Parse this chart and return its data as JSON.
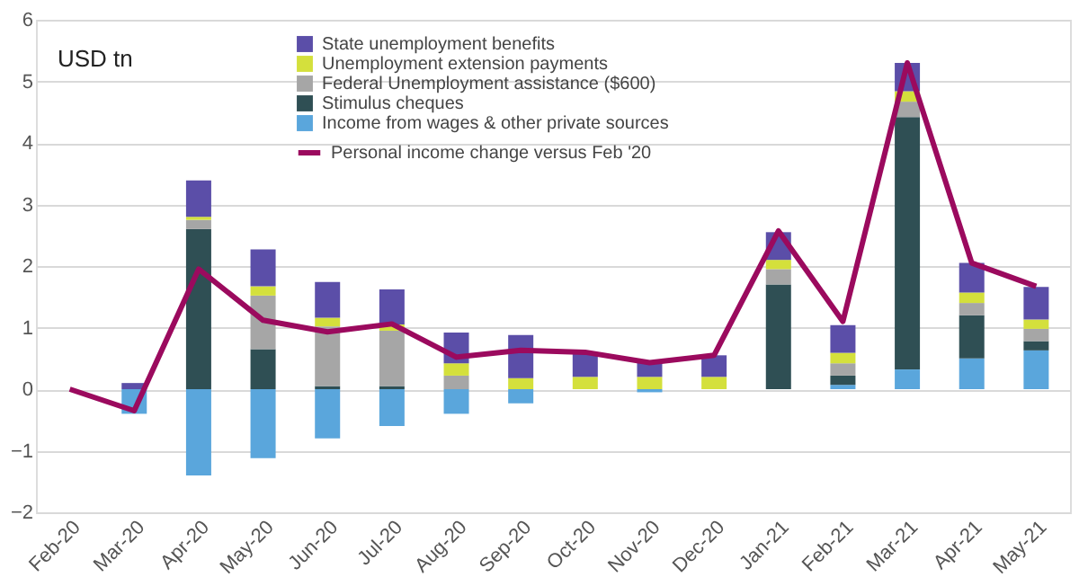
{
  "chart_data": {
    "type": "bar",
    "stacked": true,
    "categories": [
      "Feb-20",
      "Mar-20",
      "Apr-20",
      "May-20",
      "Jun-20",
      "Jul-20",
      "Aug-20",
      "Sep-20",
      "Oct-20",
      "Nov-20",
      "Dec-20",
      "Jan-21",
      "Feb-21",
      "Mar-21",
      "Apr-21",
      "May-21"
    ],
    "series": [
      {
        "name": "Income from wages & other private sources",
        "color": "#5aa6dc",
        "values": [
          0,
          -0.4,
          -1.4,
          -1.12,
          -0.8,
          -0.6,
          -0.4,
          -0.23,
          0,
          -0.05,
          0,
          0,
          0.07,
          0.32,
          0.5,
          0.63
        ]
      },
      {
        "name": "Stimulus cheques",
        "color": "#2f4f54",
        "values": [
          0,
          0,
          2.6,
          0.65,
          0.05,
          0.05,
          0,
          0,
          0,
          0,
          0,
          1.7,
          0.15,
          4.1,
          0.7,
          0.15
        ]
      },
      {
        "name": "Federal Unemployment assistance ($600)",
        "color": "#a6a6a6",
        "values": [
          0,
          0,
          0.15,
          0.87,
          0.97,
          0.9,
          0.22,
          0,
          0,
          0,
          0,
          0.25,
          0.2,
          0.25,
          0.2,
          0.2
        ]
      },
      {
        "name": "Unemployment extension payments",
        "color": "#d4e03c",
        "values": [
          0,
          0,
          0.05,
          0.15,
          0.14,
          0.1,
          0.2,
          0.18,
          0.2,
          0.2,
          0.2,
          0.15,
          0.17,
          0.17,
          0.17,
          0.15
        ]
      },
      {
        "name": "State unemployment benefits",
        "color": "#5b4ea8",
        "values": [
          0,
          0.1,
          0.59,
          0.6,
          0.58,
          0.57,
          0.5,
          0.7,
          0.4,
          0.25,
          0.35,
          0.45,
          0.45,
          0.46,
          0.48,
          0.53
        ]
      },
      {
        "name": "Personal income change versus Feb '20",
        "type": "line",
        "color": "#9b0a5e",
        "values": [
          0,
          -0.35,
          1.95,
          1.12,
          0.93,
          1.06,
          0.52,
          0.63,
          0.6,
          0.43,
          0.55,
          2.57,
          1.1,
          5.3,
          2.05,
          1.67
        ]
      }
    ],
    "ylim": [
      -2,
      6
    ],
    "yticks": [
      -2,
      -1,
      0,
      1,
      2,
      3,
      4,
      5,
      6
    ],
    "grid": "y",
    "legend": "top",
    "annotations": [
      "USD tn"
    ]
  }
}
